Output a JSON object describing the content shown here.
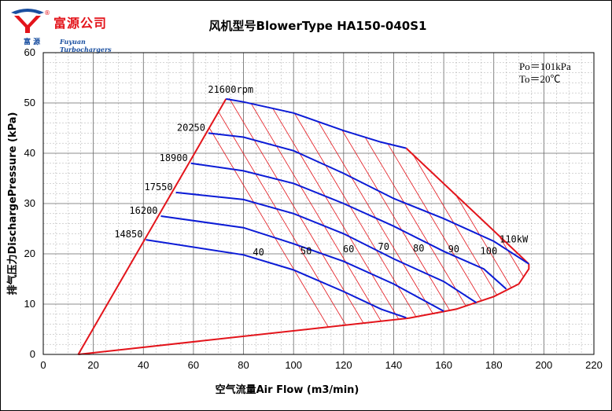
{
  "header": {
    "logo_cn": "富源公司",
    "logo_cn_small": "富 源",
    "logo_en": "Fuyuan Turbochargers",
    "logo_reg": "®"
  },
  "chart_data": {
    "type": "line",
    "title": "风机型号BlowerType HA150-040S1",
    "xlabel": "空气流量Air Flow (m3/min)",
    "ylabel": "排气压力DischargePressure (kPa)",
    "xlim": [
      0,
      220
    ],
    "ylim": [
      0,
      60
    ],
    "x_ticks": [
      "0",
      "20",
      "40",
      "60",
      "80",
      "100",
      "120",
      "140",
      "160",
      "180",
      "200",
      "220"
    ],
    "y_ticks": [
      "0",
      "10",
      "20",
      "30",
      "40",
      "50",
      "60"
    ],
    "grid": true,
    "conditions": [
      "Po＝101kPa",
      "To＝20℃"
    ],
    "envelope_color": "#e3141b",
    "speed_line_color": "#0b1bd6",
    "power_line_color": "#e3141b",
    "envelope": [
      [
        14,
        0
      ],
      [
        42,
        22.5
      ],
      [
        50,
        31.5
      ],
      [
        73,
        50.8
      ],
      [
        75,
        51
      ],
      [
        75,
        51
      ]
    ],
    "surge_line": [
      [
        14,
        0
      ],
      [
        73,
        50.8
      ]
    ],
    "bottom_line": [
      [
        14,
        0
      ],
      [
        146,
        7.2
      ]
    ],
    "right_boundary": [
      [
        145,
        41
      ],
      [
        194,
        18
      ]
    ],
    "choke_curve": [
      [
        146,
        7.2
      ],
      [
        165,
        9
      ],
      [
        180,
        11.5
      ],
      [
        190,
        14
      ],
      [
        194,
        17
      ],
      [
        194,
        18
      ]
    ],
    "speed_lines": [
      {
        "name": "21600rpm",
        "points": [
          [
            73,
            50.8
          ],
          [
            80,
            50.2
          ],
          [
            100,
            48
          ],
          [
            120,
            44.5
          ],
          [
            135,
            42.2
          ],
          [
            145,
            41
          ]
        ]
      },
      {
        "name": "20250",
        "points": [
          [
            66,
            44
          ],
          [
            80,
            43.2
          ],
          [
            100,
            40.5
          ],
          [
            120,
            36
          ],
          [
            140,
            31
          ],
          [
            160,
            27
          ],
          [
            180,
            22.5
          ],
          [
            194,
            18
          ]
        ]
      },
      {
        "name": "18900",
        "points": [
          [
            59,
            38
          ],
          [
            80,
            36.5
          ],
          [
            100,
            34
          ],
          [
            120,
            30
          ],
          [
            140,
            25.5
          ],
          [
            160,
            20.5
          ],
          [
            176,
            17
          ],
          [
            185,
            13
          ]
        ]
      },
      {
        "name": "17550",
        "points": [
          [
            53,
            32.2
          ],
          [
            80,
            30.8
          ],
          [
            100,
            28
          ],
          [
            120,
            24
          ],
          [
            140,
            19
          ],
          [
            160,
            14.5
          ],
          [
            173,
            10.3
          ]
        ]
      },
      {
        "name": "16200",
        "points": [
          [
            47,
            27.5
          ],
          [
            80,
            25.2
          ],
          [
            100,
            22
          ],
          [
            120,
            18.5
          ],
          [
            140,
            14
          ],
          [
            160,
            8.6
          ]
        ]
      },
      {
        "name": "14850",
        "points": [
          [
            41,
            22.8
          ],
          [
            80,
            19.8
          ],
          [
            100,
            16.8
          ],
          [
            120,
            12.5
          ],
          [
            135,
            9
          ],
          [
            145,
            7.3
          ]
        ]
      }
    ],
    "power_labels": [
      "40",
      "50",
      "60",
      "70",
      "80",
      "90",
      "100",
      "110kW"
    ],
    "power_label_positions": [
      [
        86,
        19.7
      ],
      [
        105,
        19.9
      ],
      [
        122,
        20.3
      ],
      [
        136,
        20.8
      ],
      [
        150,
        20.5
      ],
      [
        164,
        20.3
      ],
      [
        178,
        19.9
      ],
      [
        188,
        22.3
      ]
    ]
  }
}
